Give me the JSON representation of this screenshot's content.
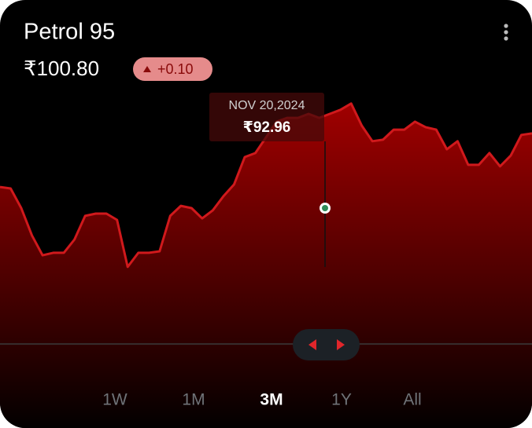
{
  "header": {
    "title": "Petrol 95",
    "price": "₹100.80",
    "change": "+0.10"
  },
  "tooltip": {
    "date": "NOV 20,2024",
    "price": "₹92.96"
  },
  "tabs": [
    "1W",
    "1M",
    "3M",
    "1Y",
    "All"
  ],
  "selected_tab": 2,
  "chart_data": {
    "type": "area",
    "color": "#d0191c",
    "ylim": [
      0,
      100
    ],
    "values": [
      63.1,
      62.5,
      54.7,
      43.8,
      35.9,
      36.9,
      36.9,
      42.2,
      51.6,
      52.5,
      52.5,
      50,
      31.3,
      36.9,
      36.9,
      37.5,
      51.6,
      55.6,
      54.7,
      50.6,
      53.8,
      59.4,
      64.1,
      75,
      76.6,
      82.8,
      89.1,
      90.6,
      90.6,
      92.2,
      90.6,
      92.2,
      93.8,
      96.3,
      87.5,
      81.3,
      81.9,
      85.9,
      85.9,
      89.1,
      86.9,
      85.9,
      78.1,
      81.3,
      71.9,
      71.9,
      76.6,
      71.3,
      75.6,
      83.8,
      84.4
    ]
  }
}
